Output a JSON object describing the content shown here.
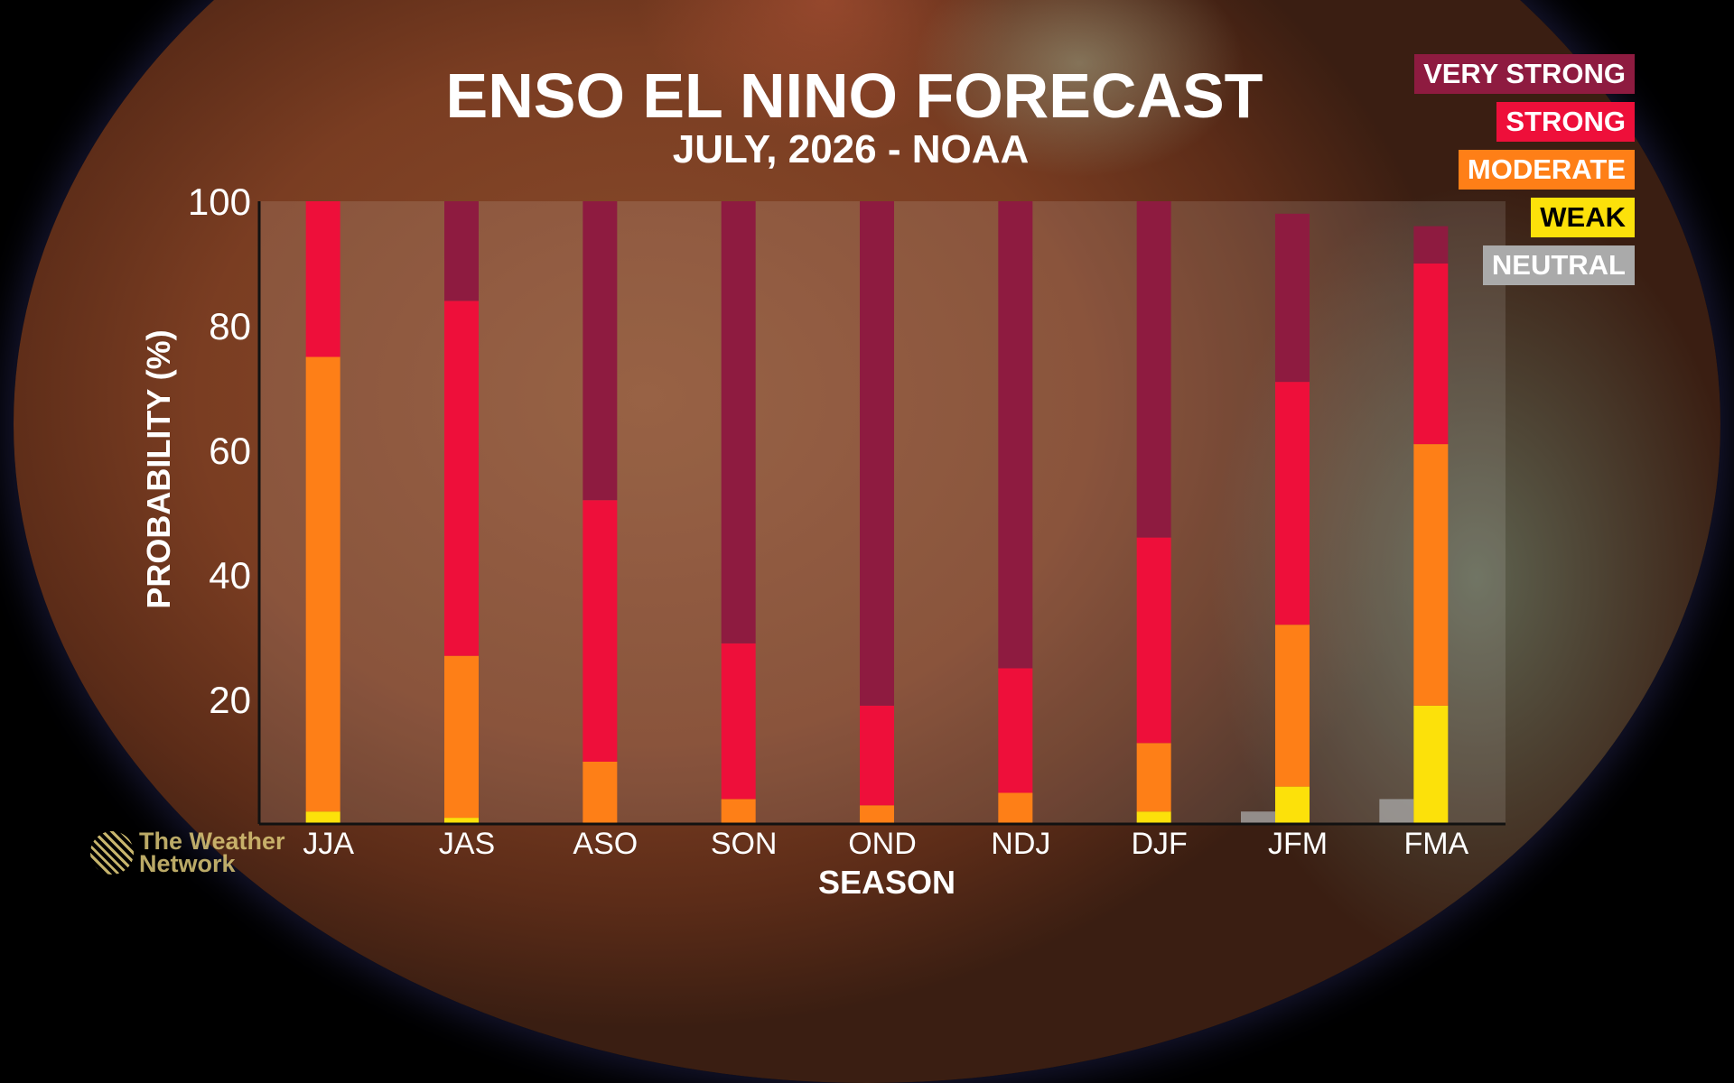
{
  "brand": {
    "logo_line1": "The Weather",
    "logo_line2": "Network"
  },
  "colors": {
    "very_strong": "#8E1B40",
    "strong": "#EE0F3A",
    "moderate": "#FE7F17",
    "weak": "#FCE10A",
    "neutral": "#AAAAAA"
  },
  "chart_data": {
    "type": "bar",
    "stacked": true,
    "title": "ENSO EL NINO FORECAST",
    "subtitle": "JULY, 2026 - NOAA",
    "xlabel": "SEASON",
    "ylabel": "PROBABILITY (%)",
    "ylim": [
      0,
      100
    ],
    "yticks": [
      20,
      40,
      60,
      80,
      100
    ],
    "grid": false,
    "legend_position": "top-right",
    "categories": [
      "JJA",
      "JAS",
      "ASO",
      "SON",
      "OND",
      "NDJ",
      "DJF",
      "JFM",
      "FMA"
    ],
    "series": [
      {
        "name": "NEUTRAL",
        "color": "#AAAAAA",
        "values": [
          0,
          0,
          0,
          0,
          0,
          0,
          0,
          2,
          4
        ]
      },
      {
        "name": "WEAK",
        "color": "#FCE10A",
        "values": [
          2,
          1,
          0,
          0,
          0,
          0,
          2,
          6,
          19
        ]
      },
      {
        "name": "MODERATE",
        "color": "#FE7F17",
        "values": [
          73,
          26,
          10,
          4,
          3,
          5,
          11,
          26,
          42
        ]
      },
      {
        "name": "STRONG",
        "color": "#EE0F3A",
        "values": [
          25,
          57,
          42,
          25,
          16,
          20,
          33,
          39,
          29
        ]
      },
      {
        "name": "VERY STRONG",
        "color": "#8E1B40",
        "values": [
          0,
          16,
          48,
          71,
          81,
          75,
          54,
          27,
          6
        ]
      }
    ]
  }
}
